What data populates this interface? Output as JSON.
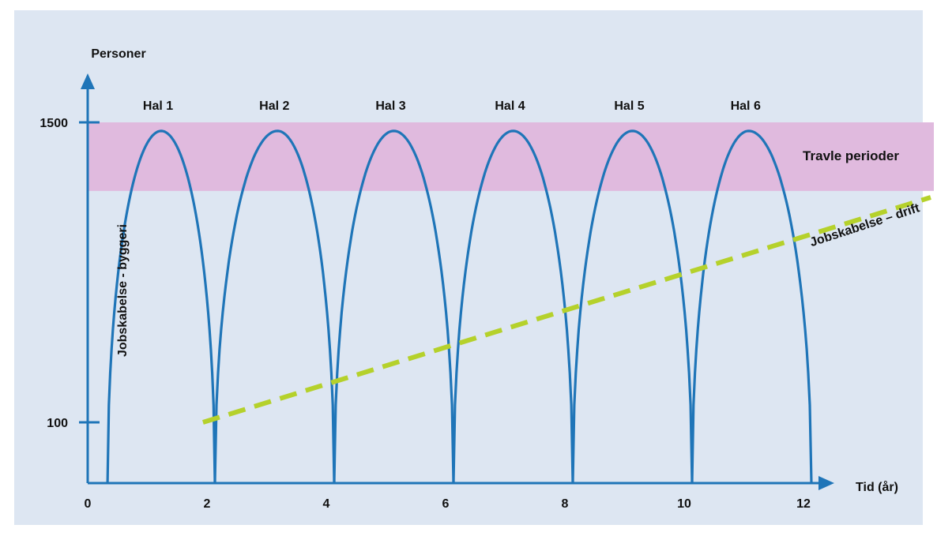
{
  "chart_data": {
    "type": "line",
    "ylabel": "Personer",
    "xlabel": "Tid (år)",
    "x_ticks": [
      "0",
      "2",
      "4",
      "6",
      "8",
      "10",
      "12"
    ],
    "xlim": [
      0,
      12
    ],
    "y_ticks": [
      {
        "value": 100,
        "label": "100"
      },
      {
        "value": 1500,
        "label": "1500"
      }
    ],
    "band": {
      "label": "Travle perioder",
      "y_range": [
        1180,
        1500
      ],
      "color": "#e0bade",
      "label_color": "#d4127c"
    },
    "humps": [
      {
        "label": "Hal 1",
        "x_start": 0.2,
        "x_peak": 1.1,
        "x_end": 2.0,
        "peak": 1460
      },
      {
        "label": "Hal 2",
        "x_start": 2.0,
        "x_peak": 3.05,
        "x_end": 4.0,
        "peak": 1460
      },
      {
        "label": "Hal 3",
        "x_start": 4.0,
        "x_peak": 5.0,
        "x_end": 6.0,
        "peak": 1460
      },
      {
        "label": "Hal 4",
        "x_start": 6.0,
        "x_peak": 7.0,
        "x_end": 8.0,
        "peak": 1460
      },
      {
        "label": "Hal 5",
        "x_start": 8.0,
        "x_peak": 9.0,
        "x_end": 10.0,
        "peak": 1460
      },
      {
        "label": "Hal 6",
        "x_start": 10.0,
        "x_peak": 10.95,
        "x_end": 12.0,
        "peak": 1460
      }
    ],
    "series": [
      {
        "name": "Jobskabelse - byggeri",
        "color": "#1f75b8",
        "style": "solid"
      },
      {
        "name": "Jobskabelse – drift",
        "color": "#b5d12b",
        "style": "dashed",
        "x": [
          1.8,
          14.0
        ],
        "y": [
          100,
          1150
        ]
      }
    ],
    "grid": false
  }
}
